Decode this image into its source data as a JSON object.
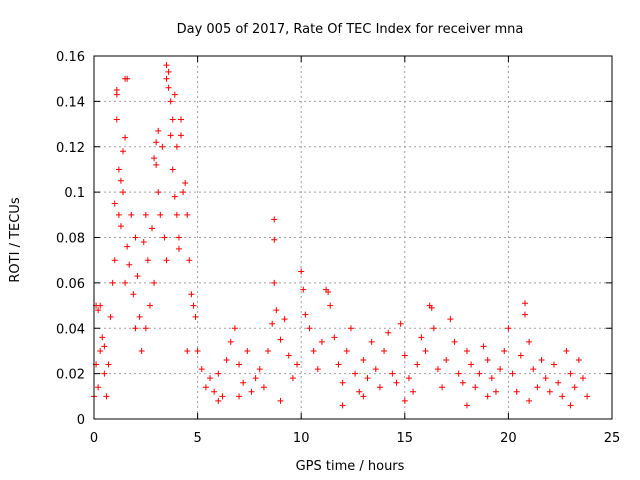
{
  "chart_data": {
    "type": "scatter",
    "title": "Day 005 of 2017, Rate Of TEC Index for receiver mna",
    "xlabel": "GPS time / hours",
    "ylabel": "ROTI / TECUs",
    "xlim": [
      0,
      25
    ],
    "ylim": [
      0,
      0.16
    ],
    "xticks": [
      0,
      5,
      10,
      15,
      20,
      25
    ],
    "xtick_labels": [
      "0",
      "5",
      "10",
      "15",
      "20",
      "25"
    ],
    "yticks": [
      0,
      0.02,
      0.04,
      0.06,
      0.08,
      0.1,
      0.12,
      0.14,
      0.16
    ],
    "ytick_labels": [
      "0",
      "0.02",
      "0.04",
      "0.06",
      "0.08",
      "0.1",
      "0.12",
      "0.14",
      "0.16"
    ],
    "grid": true,
    "marker": "+",
    "marker_color": "#ff0000",
    "series": [
      {
        "name": "ROTI",
        "points": [
          [
            0.0,
            0.01
          ],
          [
            0.1,
            0.024
          ],
          [
            0.2,
            0.014
          ],
          [
            0.3,
            0.03
          ],
          [
            0.1,
            0.05
          ],
          [
            0.2,
            0.048
          ],
          [
            0.3,
            0.05
          ],
          [
            0.4,
            0.036
          ],
          [
            0.5,
            0.02
          ],
          [
            0.6,
            0.01
          ],
          [
            0.7,
            0.024
          ],
          [
            0.8,
            0.045
          ],
          [
            0.9,
            0.06
          ],
          [
            1.0,
            0.095
          ],
          [
            1.0,
            0.07
          ],
          [
            1.1,
            0.143
          ],
          [
            1.1,
            0.145
          ],
          [
            1.1,
            0.132
          ],
          [
            1.2,
            0.11
          ],
          [
            1.2,
            0.09
          ],
          [
            1.3,
            0.105
          ],
          [
            1.3,
            0.085
          ],
          [
            1.4,
            0.118
          ],
          [
            1.4,
            0.1
          ],
          [
            1.5,
            0.124
          ],
          [
            1.5,
            0.15
          ],
          [
            1.6,
            0.15
          ],
          [
            1.6,
            0.076
          ],
          [
            1.7,
            0.068
          ],
          [
            1.8,
            0.09
          ],
          [
            1.9,
            0.055
          ],
          [
            2.0,
            0.04
          ],
          [
            2.0,
            0.08
          ],
          [
            2.1,
            0.063
          ],
          [
            2.2,
            0.045
          ],
          [
            2.3,
            0.03
          ],
          [
            2.4,
            0.078
          ],
          [
            2.5,
            0.09
          ],
          [
            2.6,
            0.07
          ],
          [
            2.7,
            0.05
          ],
          [
            2.8,
            0.084
          ],
          [
            2.9,
            0.06
          ],
          [
            2.9,
            0.115
          ],
          [
            3.0,
            0.122
          ],
          [
            3.0,
            0.112
          ],
          [
            3.1,
            0.127
          ],
          [
            3.1,
            0.1
          ],
          [
            3.2,
            0.09
          ],
          [
            3.3,
            0.12
          ],
          [
            3.4,
            0.08
          ],
          [
            3.5,
            0.156
          ],
          [
            3.5,
            0.15
          ],
          [
            3.6,
            0.153
          ],
          [
            3.6,
            0.146
          ],
          [
            3.7,
            0.14
          ],
          [
            3.7,
            0.125
          ],
          [
            3.8,
            0.132
          ],
          [
            3.8,
            0.11
          ],
          [
            3.9,
            0.143
          ],
          [
            3.9,
            0.098
          ],
          [
            4.0,
            0.09
          ],
          [
            4.0,
            0.12
          ],
          [
            4.1,
            0.08
          ],
          [
            4.1,
            0.075
          ],
          [
            4.2,
            0.132
          ],
          [
            4.2,
            0.125
          ],
          [
            4.3,
            0.1
          ],
          [
            4.4,
            0.104
          ],
          [
            4.5,
            0.09
          ],
          [
            4.6,
            0.07
          ],
          [
            4.7,
            0.055
          ],
          [
            4.8,
            0.05
          ],
          [
            4.9,
            0.045
          ],
          [
            5.0,
            0.03
          ],
          [
            5.2,
            0.022
          ],
          [
            5.4,
            0.014
          ],
          [
            5.6,
            0.018
          ],
          [
            5.8,
            0.012
          ],
          [
            6.0,
            0.02
          ],
          [
            6.2,
            0.01
          ],
          [
            6.4,
            0.026
          ],
          [
            6.6,
            0.034
          ],
          [
            6.8,
            0.04
          ],
          [
            7.0,
            0.024
          ],
          [
            7.2,
            0.016
          ],
          [
            7.4,
            0.03
          ],
          [
            7.6,
            0.012
          ],
          [
            7.8,
            0.018
          ],
          [
            8.0,
            0.022
          ],
          [
            8.2,
            0.014
          ],
          [
            8.4,
            0.03
          ],
          [
            8.6,
            0.042
          ],
          [
            8.7,
            0.088
          ],
          [
            8.7,
            0.079
          ],
          [
            8.7,
            0.06
          ],
          [
            8.8,
            0.048
          ],
          [
            9.0,
            0.035
          ],
          [
            9.2,
            0.044
          ],
          [
            9.4,
            0.028
          ],
          [
            9.6,
            0.018
          ],
          [
            9.8,
            0.024
          ],
          [
            10.0,
            0.065
          ],
          [
            10.1,
            0.057
          ],
          [
            10.2,
            0.046
          ],
          [
            10.4,
            0.04
          ],
          [
            10.6,
            0.03
          ],
          [
            10.8,
            0.022
          ],
          [
            11.0,
            0.034
          ],
          [
            11.2,
            0.057
          ],
          [
            11.3,
            0.056
          ],
          [
            11.4,
            0.05
          ],
          [
            11.6,
            0.036
          ],
          [
            11.8,
            0.024
          ],
          [
            12.0,
            0.016
          ],
          [
            12.2,
            0.03
          ],
          [
            12.4,
            0.04
          ],
          [
            12.6,
            0.02
          ],
          [
            12.8,
            0.012
          ],
          [
            13.0,
            0.026
          ],
          [
            13.2,
            0.018
          ],
          [
            13.4,
            0.034
          ],
          [
            13.6,
            0.022
          ],
          [
            13.8,
            0.014
          ],
          [
            14.0,
            0.03
          ],
          [
            14.2,
            0.038
          ],
          [
            14.4,
            0.02
          ],
          [
            14.6,
            0.016
          ],
          [
            14.8,
            0.042
          ],
          [
            15.0,
            0.028
          ],
          [
            15.2,
            0.018
          ],
          [
            15.4,
            0.012
          ],
          [
            15.6,
            0.024
          ],
          [
            15.8,
            0.036
          ],
          [
            16.0,
            0.03
          ],
          [
            16.2,
            0.05
          ],
          [
            16.3,
            0.049
          ],
          [
            16.4,
            0.04
          ],
          [
            16.6,
            0.022
          ],
          [
            16.8,
            0.014
          ],
          [
            17.0,
            0.026
          ],
          [
            17.2,
            0.044
          ],
          [
            17.4,
            0.034
          ],
          [
            17.6,
            0.02
          ],
          [
            17.8,
            0.016
          ],
          [
            18.0,
            0.03
          ],
          [
            18.2,
            0.024
          ],
          [
            18.4,
            0.014
          ],
          [
            18.6,
            0.02
          ],
          [
            18.8,
            0.032
          ],
          [
            19.0,
            0.026
          ],
          [
            19.2,
            0.018
          ],
          [
            19.4,
            0.012
          ],
          [
            19.6,
            0.022
          ],
          [
            19.8,
            0.03
          ],
          [
            20.0,
            0.04
          ],
          [
            20.2,
            0.02
          ],
          [
            20.4,
            0.012
          ],
          [
            20.6,
            0.028
          ],
          [
            20.8,
            0.051
          ],
          [
            20.8,
            0.046
          ],
          [
            21.0,
            0.034
          ],
          [
            21.2,
            0.022
          ],
          [
            21.4,
            0.014
          ],
          [
            21.6,
            0.026
          ],
          [
            21.8,
            0.018
          ],
          [
            22.0,
            0.012
          ],
          [
            22.2,
            0.024
          ],
          [
            22.4,
            0.016
          ],
          [
            22.6,
            0.01
          ],
          [
            22.8,
            0.03
          ],
          [
            23.0,
            0.02
          ],
          [
            23.2,
            0.014
          ],
          [
            23.4,
            0.026
          ],
          [
            23.6,
            0.018
          ],
          [
            23.8,
            0.01
          ],
          [
            0.5,
            0.032
          ],
          [
            1.5,
            0.06
          ],
          [
            2.5,
            0.04
          ],
          [
            3.5,
            0.07
          ],
          [
            4.5,
            0.03
          ],
          [
            6.0,
            0.008
          ],
          [
            9.0,
            0.008
          ],
          [
            12.0,
            0.006
          ],
          [
            15.0,
            0.008
          ],
          [
            18.0,
            0.006
          ],
          [
            21.0,
            0.008
          ],
          [
            23.0,
            0.006
          ],
          [
            7.0,
            0.01
          ],
          [
            13.0,
            0.01
          ],
          [
            19.0,
            0.01
          ]
        ]
      }
    ]
  }
}
